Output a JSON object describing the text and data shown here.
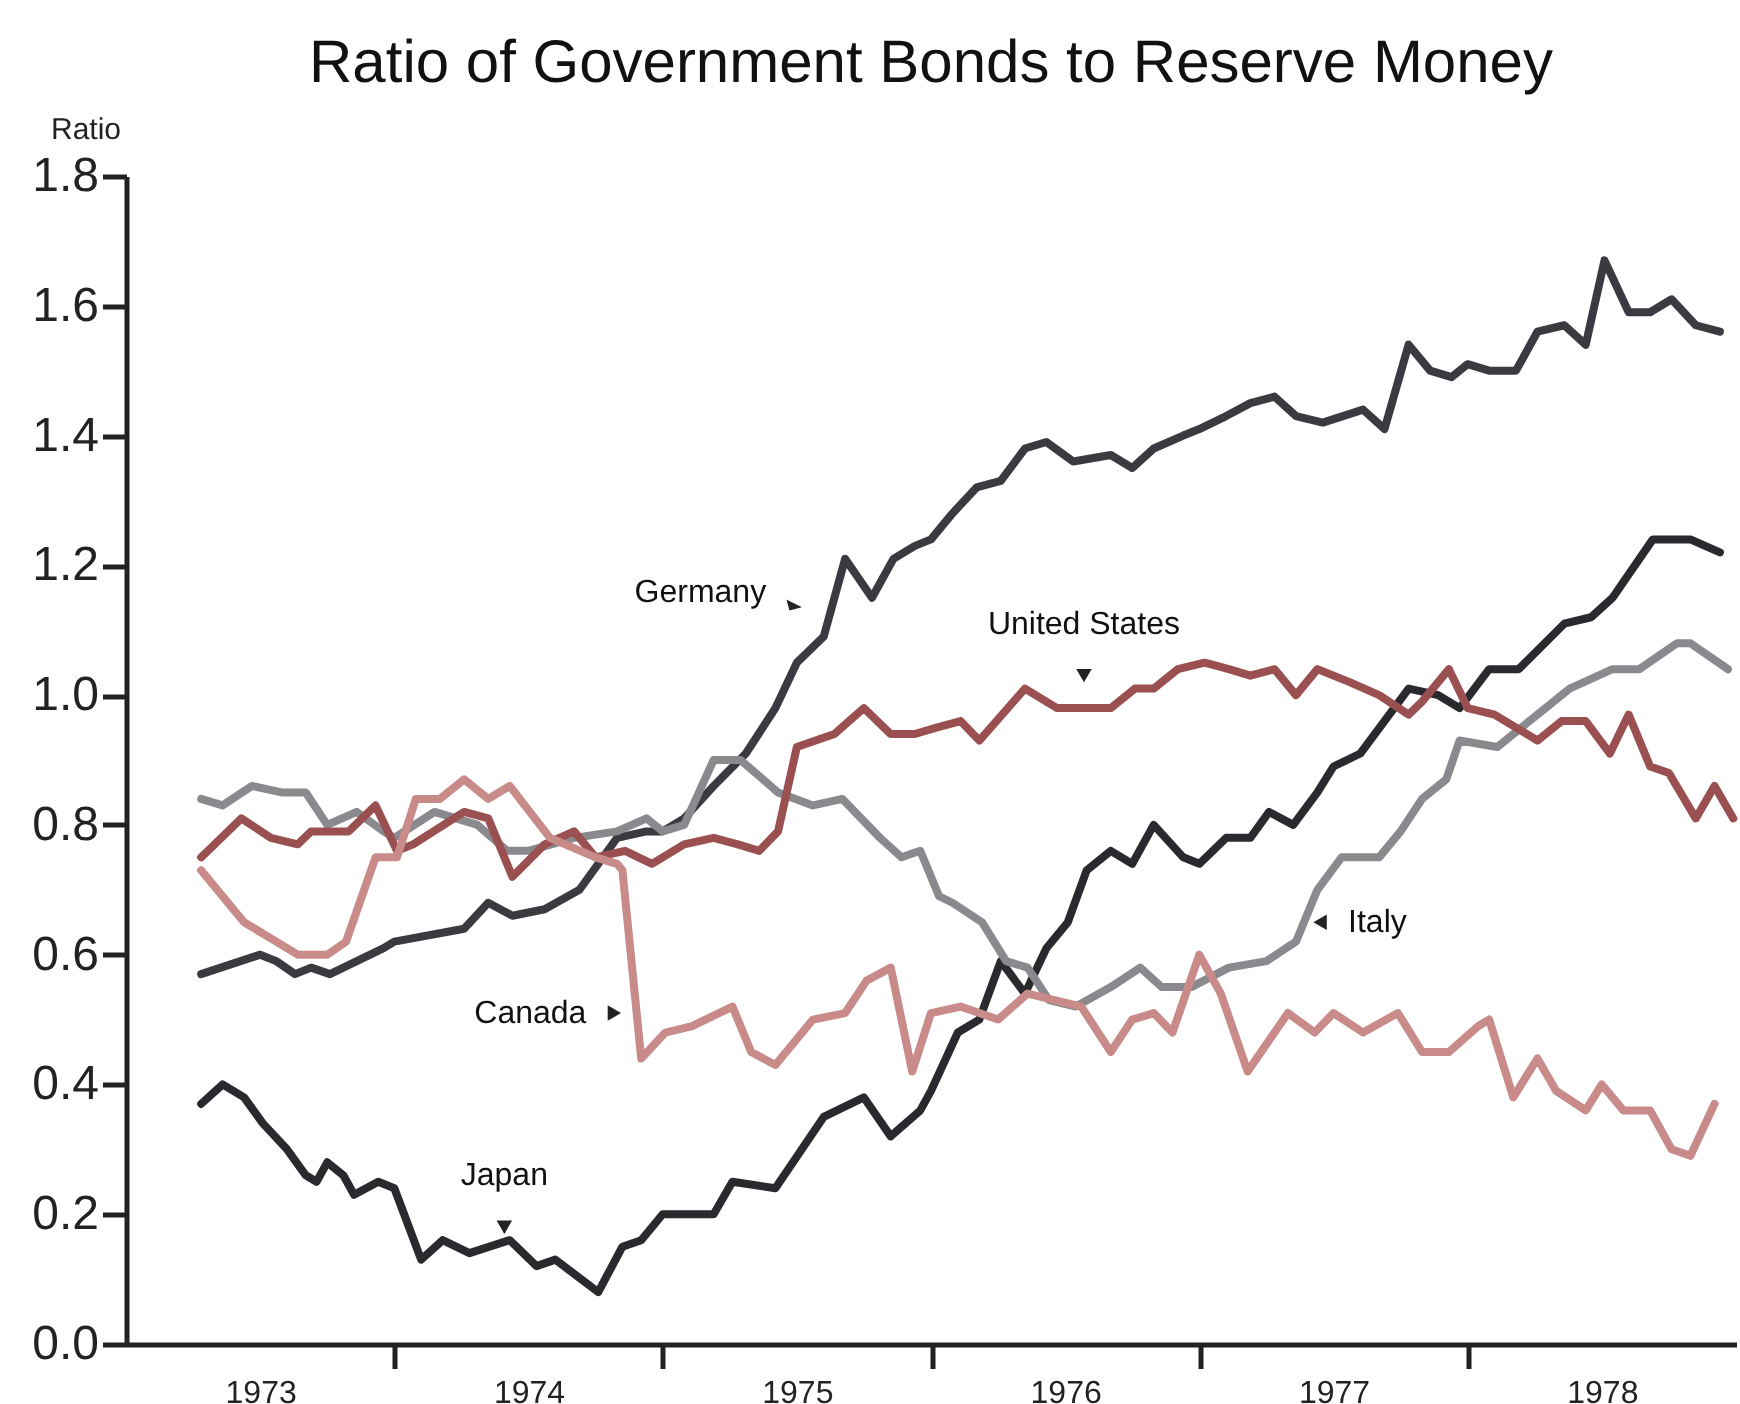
{
  "chart_data": {
    "type": "line",
    "title": "Ratio of Government Bonds to Reserve Money",
    "ylabel": "Ratio",
    "xlim": [
      1973,
      1979
    ],
    "xticks": [
      {
        "value": 1973.5,
        "label": "1973"
      },
      {
        "value": 1974,
        "label": null
      },
      {
        "value": 1974.5,
        "label": "1974"
      },
      {
        "value": 1975,
        "label": null
      },
      {
        "value": 1975.5,
        "label": "1975"
      },
      {
        "value": 1976,
        "label": null
      },
      {
        "value": 1976.5,
        "label": "1976"
      },
      {
        "value": 1977,
        "label": null
      },
      {
        "value": 1977.5,
        "label": "1977"
      },
      {
        "value": 1978,
        "label": null
      },
      {
        "value": 1978.5,
        "label": "1978"
      }
    ],
    "ylim": [
      0,
      1.8
    ],
    "yticks": [
      {
        "value": 0,
        "label": "0.0"
      },
      0.2,
      0.4,
      0.6,
      0.8,
      {
        "value": 1,
        "label": "1.0"
      },
      1.2,
      1.4,
      1.6,
      1.8
    ],
    "grid": false,
    "legend": false,
    "marker": "none",
    "line_style": "solid",
    "series": [
      {
        "color": "#3a3a40",
        "x": [
          1973.28,
          1973.5,
          1973.56,
          1973.63,
          1973.69,
          1973.76,
          1973.86,
          1973.96,
          1974.0,
          1974.26,
          1974.35,
          1974.44,
          1974.56,
          1974.69,
          1974.83,
          1974.94,
          1975.0,
          1975.08,
          1975.19,
          1975.31,
          1975.42,
          1975.5,
          1975.6,
          1975.68,
          1975.78,
          1975.86,
          1975.94,
          1976.0,
          1976.08,
          1976.17,
          1976.26,
          1976.35,
          1976.43,
          1976.53,
          1976.67,
          1976.75,
          1976.83,
          1976.94,
          1977.0,
          1977.1,
          1977.19,
          1977.28,
          1977.36,
          1977.46,
          1977.61,
          1977.69,
          1977.78,
          1977.86,
          1977.94,
          1978.0,
          1978.08,
          1978.18,
          1978.26,
          1978.36,
          1978.44,
          1978.51,
          1978.6,
          1978.68,
          1978.76,
          1978.85,
          1978.94
        ],
        "values": [
          0.57,
          0.6,
          0.59,
          0.57,
          0.58,
          0.57,
          0.59,
          0.61,
          0.62,
          0.64,
          0.68,
          0.66,
          0.67,
          0.7,
          0.78,
          0.79,
          0.79,
          0.81,
          0.86,
          0.91,
          0.98,
          1.05,
          1.09,
          1.21,
          1.15,
          1.21,
          1.23,
          1.24,
          1.28,
          1.32,
          1.33,
          1.38,
          1.39,
          1.36,
          1.37,
          1.35,
          1.38,
          1.4,
          1.41,
          1.43,
          1.45,
          1.46,
          1.43,
          1.42,
          1.44,
          1.41,
          1.54,
          1.5,
          1.49,
          1.51,
          1.5,
          1.5,
          1.56,
          1.57,
          1.54,
          1.67,
          1.59,
          1.59,
          1.61,
          1.57,
          1.56
        ]
      },
      {
        "color": "#2a2a2e",
        "x": [
          1973.28,
          1973.36,
          1973.44,
          1973.51,
          1973.6,
          1973.67,
          1973.71,
          1973.75,
          1973.81,
          1973.85,
          1973.94,
          1974.0,
          1974.1,
          1974.18,
          1974.28,
          1974.43,
          1974.53,
          1974.6,
          1974.76,
          1974.85,
          1974.92,
          1975.0,
          1975.11,
          1975.19,
          1975.26,
          1975.42,
          1975.6,
          1975.75,
          1975.85,
          1975.96,
          1976.0,
          1976.1,
          1976.18,
          1976.26,
          1976.35,
          1976.43,
          1976.51,
          1976.58,
          1976.67,
          1976.75,
          1976.83,
          1976.94,
          1977.0,
          1977.1,
          1977.19,
          1977.26,
          1977.35,
          1977.44,
          1977.5,
          1977.6,
          1977.78,
          1977.89,
          1977.97,
          1978.08,
          1978.19,
          1978.36,
          1978.46,
          1978.54,
          1978.69,
          1978.83,
          1978.94
        ],
        "values": [
          0.37,
          0.4,
          0.38,
          0.34,
          0.3,
          0.26,
          0.25,
          0.28,
          0.26,
          0.23,
          0.25,
          0.24,
          0.13,
          0.16,
          0.14,
          0.16,
          0.12,
          0.13,
          0.08,
          0.15,
          0.16,
          0.2,
          0.2,
          0.2,
          0.25,
          0.24,
          0.35,
          0.38,
          0.32,
          0.36,
          0.39,
          0.48,
          0.5,
          0.59,
          0.54,
          0.61,
          0.65,
          0.73,
          0.76,
          0.74,
          0.8,
          0.75,
          0.74,
          0.78,
          0.78,
          0.82,
          0.8,
          0.85,
          0.89,
          0.91,
          1.01,
          1.0,
          0.98,
          1.04,
          1.04,
          1.11,
          1.12,
          1.15,
          1.24,
          1.24,
          1.22
        ]
      },
      {
        "color": "#8a8a8e",
        "x": [
          1973.28,
          1973.36,
          1973.47,
          1973.58,
          1973.67,
          1973.75,
          1973.86,
          1973.96,
          1974.0,
          1974.15,
          1974.31,
          1974.42,
          1974.5,
          1974.67,
          1974.83,
          1974.94,
          1975.0,
          1975.08,
          1975.19,
          1975.29,
          1975.43,
          1975.56,
          1975.67,
          1975.81,
          1975.89,
          1975.96,
          1976.03,
          1976.08,
          1976.19,
          1976.28,
          1976.36,
          1976.44,
          1976.54,
          1976.67,
          1976.78,
          1976.86,
          1976.97,
          1977.11,
          1977.25,
          1977.36,
          1977.44,
          1977.53,
          1977.67,
          1977.75,
          1977.83,
          1977.92,
          1977.97,
          1978.11,
          1978.26,
          1978.38,
          1978.54,
          1978.64,
          1978.78,
          1978.83,
          1978.97
        ],
        "values": [
          0.84,
          0.83,
          0.86,
          0.85,
          0.85,
          0.8,
          0.82,
          0.79,
          0.78,
          0.82,
          0.8,
          0.76,
          0.76,
          0.78,
          0.79,
          0.81,
          0.79,
          0.8,
          0.9,
          0.9,
          0.85,
          0.83,
          0.84,
          0.78,
          0.75,
          0.76,
          0.69,
          0.68,
          0.65,
          0.59,
          0.58,
          0.53,
          0.52,
          0.55,
          0.58,
          0.55,
          0.55,
          0.58,
          0.59,
          0.62,
          0.7,
          0.75,
          0.75,
          0.79,
          0.84,
          0.87,
          0.93,
          0.92,
          0.97,
          1.01,
          1.04,
          1.04,
          1.08,
          1.08,
          1.04
        ]
      },
      {
        "color": "#9a5050",
        "x": [
          1973.28,
          1973.43,
          1973.54,
          1973.64,
          1973.69,
          1973.83,
          1973.93,
          1974.01,
          1974.07,
          1974.26,
          1974.35,
          1974.44,
          1974.56,
          1974.67,
          1974.75,
          1974.86,
          1974.96,
          1975.04,
          1975.08,
          1975.19,
          1975.28,
          1975.36,
          1975.43,
          1975.5,
          1975.64,
          1975.75,
          1975.85,
          1975.94,
          1976.02,
          1976.11,
          1976.18,
          1976.35,
          1976.47,
          1976.67,
          1976.76,
          1976.83,
          1976.92,
          1977.02,
          1977.11,
          1977.19,
          1977.28,
          1977.36,
          1977.44,
          1977.56,
          1977.67,
          1977.78,
          1977.83,
          1977.93,
          1978.0,
          1978.1,
          1978.26,
          1978.35,
          1978.44,
          1978.53,
          1978.6,
          1978.68,
          1978.75,
          1978.85,
          1978.92,
          1978.99
        ],
        "values": [
          0.75,
          0.81,
          0.78,
          0.77,
          0.79,
          0.79,
          0.83,
          0.76,
          0.77,
          0.82,
          0.81,
          0.72,
          0.77,
          0.79,
          0.75,
          0.76,
          0.74,
          0.76,
          0.77,
          0.78,
          0.77,
          0.76,
          0.79,
          0.92,
          0.94,
          0.98,
          0.94,
          0.94,
          0.95,
          0.96,
          0.93,
          1.01,
          0.98,
          0.98,
          1.01,
          1.01,
          1.04,
          1.05,
          1.04,
          1.03,
          1.04,
          1.0,
          1.04,
          1.02,
          1.0,
          0.97,
          0.99,
          1.04,
          0.98,
          0.97,
          0.93,
          0.96,
          0.96,
          0.91,
          0.97,
          0.89,
          0.88,
          0.81,
          0.86,
          0.81
        ]
      },
      {
        "color": "#c98a8a",
        "x": [
          1973.28,
          1973.36,
          1973.44,
          1973.56,
          1973.64,
          1973.75,
          1973.82,
          1973.93,
          1974.01,
          1974.08,
          1974.17,
          1974.26,
          1974.35,
          1974.43,
          1974.58,
          1974.75,
          1974.83,
          1974.85,
          1974.92,
          1975.01,
          1975.11,
          1975.26,
          1975.33,
          1975.42,
          1975.56,
          1975.68,
          1975.76,
          1975.85,
          1975.93,
          1976.0,
          1976.11,
          1976.25,
          1976.36,
          1976.56,
          1976.67,
          1976.75,
          1976.83,
          1976.9,
          1977.0,
          1977.08,
          1977.18,
          1977.33,
          1977.43,
          1977.5,
          1977.61,
          1977.74,
          1977.83,
          1977.93,
          1978.04,
          1978.08,
          1978.17,
          1978.26,
          1978.33,
          1978.44,
          1978.5,
          1978.58,
          1978.68,
          1978.76,
          1978.83,
          1978.92
        ],
        "values": [
          0.73,
          0.69,
          0.65,
          0.62,
          0.6,
          0.6,
          0.62,
          0.75,
          0.75,
          0.84,
          0.84,
          0.87,
          0.84,
          0.86,
          0.78,
          0.75,
          0.74,
          0.73,
          0.44,
          0.48,
          0.49,
          0.52,
          0.45,
          0.43,
          0.5,
          0.51,
          0.56,
          0.58,
          0.42,
          0.51,
          0.52,
          0.5,
          0.54,
          0.52,
          0.45,
          0.5,
          0.51,
          0.48,
          0.6,
          0.54,
          0.42,
          0.51,
          0.48,
          0.51,
          0.48,
          0.51,
          0.45,
          0.45,
          0.49,
          0.5,
          0.38,
          0.44,
          0.39,
          0.36,
          0.4,
          0.36,
          0.36,
          0.3,
          0.29,
          0.37
        ]
      }
    ],
    "annotations": [
      {
        "text": "Germany",
        "x": 1975.49,
        "y": 1.14
      },
      {
        "text": "United States",
        "x": 1976.57,
        "y": 1.03
      },
      {
        "text": "Italy",
        "x": 1977.45,
        "y": 0.65
      },
      {
        "text": "Canada",
        "x": 1974.82,
        "y": 0.51
      },
      {
        "text": "Japan",
        "x": 1974.41,
        "y": 0.18
      }
    ]
  }
}
